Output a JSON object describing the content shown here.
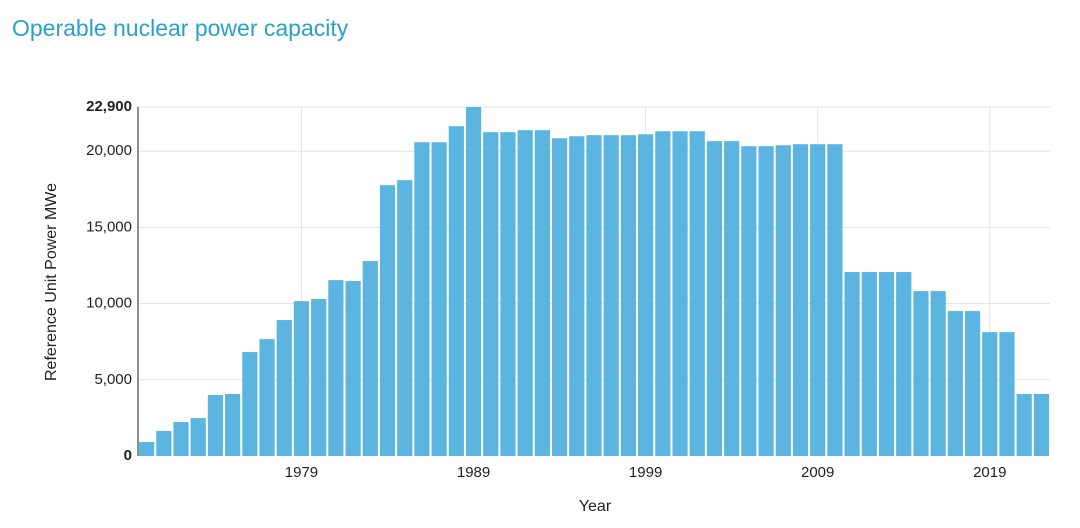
{
  "chart_data": {
    "type": "bar",
    "title": "Operable nuclear power capacity",
    "xlabel": "Year",
    "ylabel": "Reference Unit Power MWe",
    "x": [
      1970,
      1971,
      1972,
      1973,
      1974,
      1975,
      1976,
      1977,
      1978,
      1979,
      1980,
      1981,
      1982,
      1983,
      1984,
      1985,
      1986,
      1987,
      1988,
      1989,
      1990,
      1991,
      1992,
      1993,
      1994,
      1995,
      1996,
      1997,
      1998,
      1999,
      2000,
      2001,
      2002,
      2003,
      2004,
      2005,
      2006,
      2007,
      2008,
      2009,
      2010,
      2011,
      2012,
      2013,
      2014,
      2015,
      2016,
      2017,
      2018,
      2019,
      2020,
      2021,
      2022
    ],
    "values": [
      920,
      1640,
      2230,
      2490,
      4000,
      4070,
      6820,
      7670,
      8920,
      10160,
      10300,
      11540,
      11480,
      12790,
      17770,
      18100,
      20590,
      20590,
      21640,
      22900,
      21250,
      21250,
      21380,
      21380,
      20850,
      20980,
      21050,
      21050,
      21050,
      21110,
      21310,
      21310,
      21310,
      20660,
      20660,
      20330,
      20330,
      20390,
      20460,
      20460,
      20460,
      12070,
      12070,
      12070,
      12070,
      10820,
      10820,
      9510,
      9510,
      8130,
      8130,
      4070,
      4070
    ],
    "color": "#5cb5e1",
    "xlim": [
      1969.5,
      2022.5
    ],
    "xticks": [
      1979,
      1989,
      1999,
      2009,
      2019
    ],
    "ylim": [
      0,
      22900
    ],
    "yticks": [
      0,
      {
        "value": 5000,
        "label": "5,000"
      },
      {
        "value": 10000,
        "label": "10,000"
      },
      {
        "value": 15000,
        "label": "15,000"
      },
      {
        "value": 20000,
        "label": "20,000"
      },
      {
        "value": 22900,
        "label": "22,900"
      }
    ],
    "grid": true
  }
}
